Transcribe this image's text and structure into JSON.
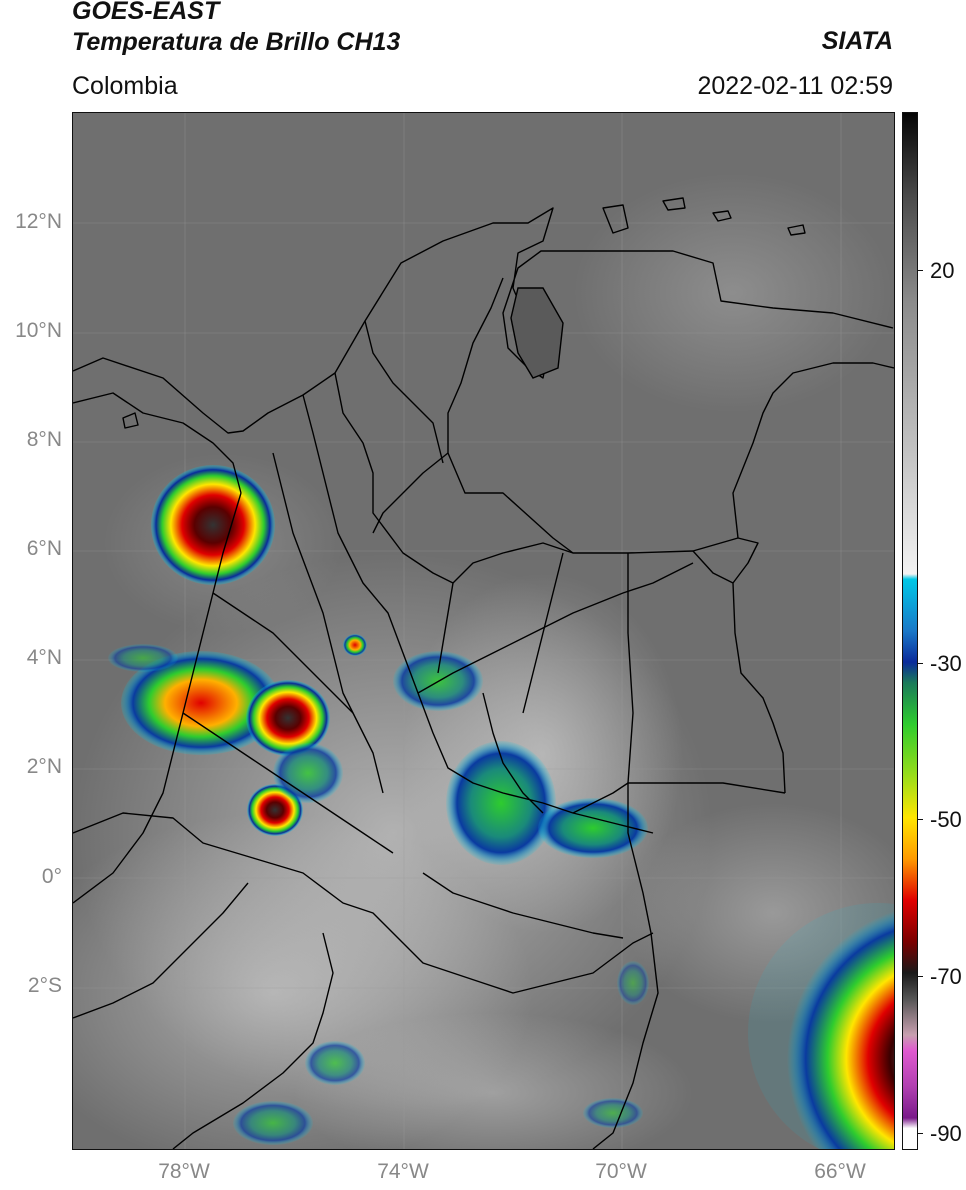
{
  "header": {
    "satellite": "GOES-EAST",
    "product": "Temperatura de Brillo CH13",
    "region": "Colombia",
    "organization": "SIATA",
    "datetime": "2022-02-11 02:59"
  },
  "map": {
    "lat_labels": [
      "12°N",
      "10°N",
      "8°N",
      "6°N",
      "4°N",
      "2°N",
      "0°",
      "2°S"
    ],
    "lon_labels": [
      "78°W",
      "74°W",
      "70°W",
      "66°W"
    ],
    "background_color": "#6f6f6f",
    "border_color": "#000000"
  },
  "colorbar": {
    "labels": [
      "20",
      "-30",
      "-50",
      "-70",
      "-90"
    ],
    "colors": {
      "cyan": "#00c8e6",
      "blue": "#0a2a9a",
      "green": "#2ecc2e",
      "yellow": "#ffe600",
      "red": "#e00000",
      "dark_red": "#4a0000",
      "magenta": "#e05ad0",
      "purple": "#7a1a8a"
    }
  }
}
